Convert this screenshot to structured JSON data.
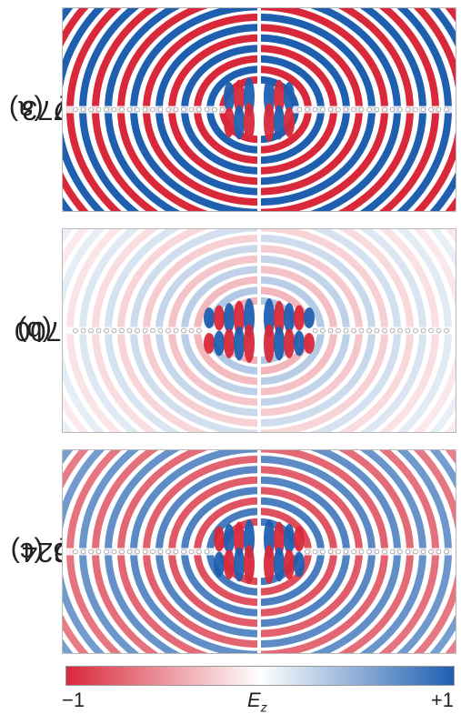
{
  "panels": [
    {
      "tag": "(a) ",
      "symbol": "Q",
      "eq": " = 1773",
      "amplitude": 1.0,
      "decay": 0.0,
      "core_lobes": 3
    },
    {
      "tag": "(b) ",
      "symbol": "Q",
      "eq": " = 28700",
      "amplitude": 0.45,
      "decay": 0.35,
      "core_lobes": 5
    },
    {
      "tag": "(c) ",
      "symbol": "Q",
      "eq": " = 6624",
      "amplitude": 0.9,
      "decay": 0.12,
      "core_lobes": 4
    }
  ],
  "colorbar": {
    "min_label": "−1",
    "max_label": "+1",
    "field_symbol": "E",
    "field_subscript": "z",
    "color_negative": "#d8283a",
    "color_zero": "#ffffff",
    "color_positive": "#1f5fb0"
  }
}
